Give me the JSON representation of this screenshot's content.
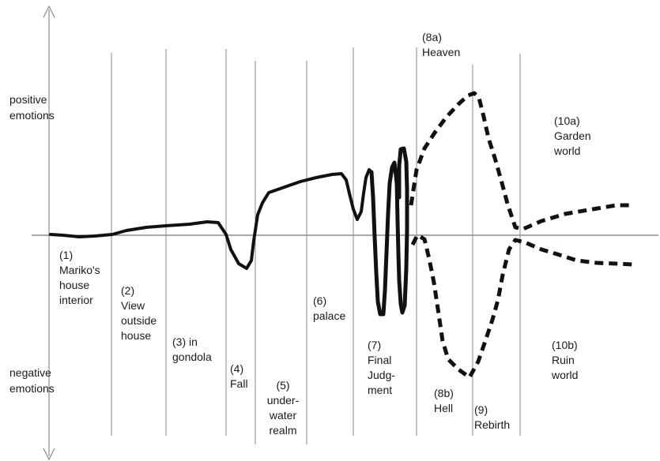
{
  "axis_labels": {
    "positive": [
      "positive",
      "emotions"
    ],
    "negative": [
      "negative",
      "emotions"
    ]
  },
  "scenes": [
    {
      "id": "1",
      "lines": [
        "(1)",
        "Mariko's",
        "house",
        "interior"
      ]
    },
    {
      "id": "2",
      "lines": [
        "(2)",
        "View",
        "outside",
        "house"
      ]
    },
    {
      "id": "3",
      "lines": [
        "(3) in",
        "gondola"
      ]
    },
    {
      "id": "4",
      "lines": [
        "(4)",
        "Fall"
      ]
    },
    {
      "id": "5",
      "lines": [
        "(5)",
        "under-",
        "water",
        "realm"
      ]
    },
    {
      "id": "6",
      "lines": [
        "(6)",
        "palace"
      ]
    },
    {
      "id": "7",
      "lines": [
        "(7)",
        "Final",
        "Judg-",
        "ment"
      ]
    },
    {
      "id": "8a",
      "lines": [
        "(8a)",
        "Heaven"
      ]
    },
    {
      "id": "8b",
      "lines": [
        "(8b)",
        "Hell"
      ]
    },
    {
      "id": "9",
      "lines": [
        "(9)",
        "Rebirth"
      ]
    },
    {
      "id": "10a",
      "lines": [
        "(10a)",
        "Garden",
        "world"
      ]
    },
    {
      "id": "10b",
      "lines": [
        "(10b)",
        "Ruin",
        "world"
      ]
    }
  ],
  "colors": {
    "ink": "#111111",
    "axis": "#777777",
    "divider": "#8a8a8a",
    "text": "#1a1a1a"
  }
}
